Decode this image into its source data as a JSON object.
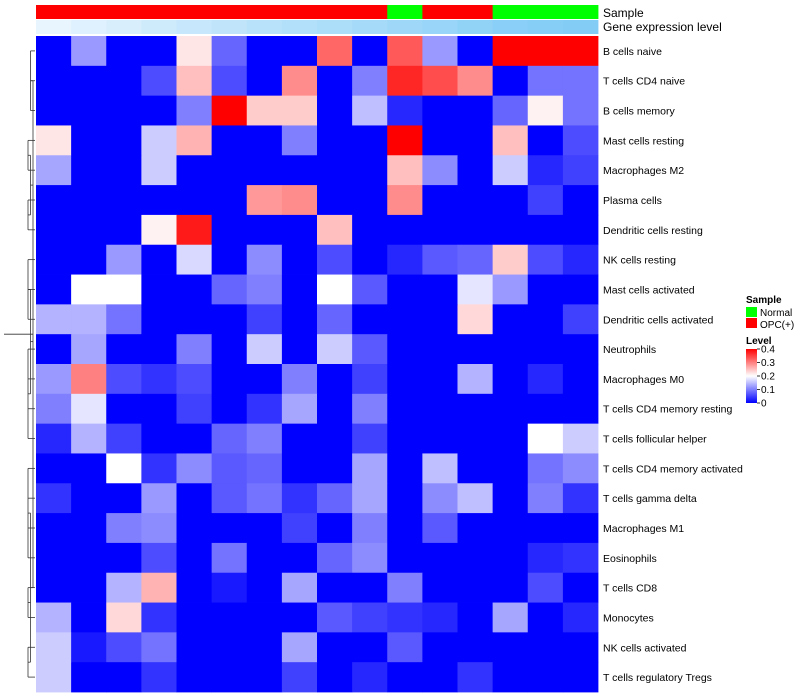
{
  "chart_data": {
    "type": "heatmap",
    "colorscale": {
      "low": "#0000FF",
      "mid": "#FFFFFF",
      "high": "#FF0000",
      "mid_value": 0.2,
      "range": [
        0,
        0.4
      ]
    },
    "annotation_rows": [
      {
        "name": "Sample",
        "values": [
          "OPC(+)",
          "OPC(+)",
          "OPC(+)",
          "OPC(+)",
          "OPC(+)",
          "OPC(+)",
          "OPC(+)",
          "OPC(+)",
          "OPC(+)",
          "OPC(+)",
          "Normal",
          "OPC(+)",
          "OPC(+)",
          "Normal",
          "Normal",
          "Normal"
        ]
      },
      {
        "name": "Gene expression level",
        "values": [
          0.06,
          0.14,
          0.2,
          0.28,
          0.34,
          0.4,
          0.47,
          0.52,
          0.57,
          0.62,
          0.68,
          0.73,
          0.79,
          0.85,
          0.88,
          0.92
        ]
      }
    ],
    "rows": [
      "B cells naive",
      "T cells CD4 naive",
      "B cells memory",
      "Mast cells resting",
      "Macrophages M2",
      "Plasma cells",
      "Dendritic cells resting",
      "NK cells resting",
      "Mast cells activated",
      "Dendritic cells activated",
      "Neutrophils",
      "Macrophages M0",
      "T cells CD4 memory resting",
      "T cells follicular helper",
      "T cells CD4 memory activated",
      "T cells gamma delta",
      "Macrophages M1",
      "Eosinophils",
      "T cells CD8",
      "Monocytes",
      "NK cells activated",
      "T cells regulatory  Tregs"
    ],
    "values": [
      [
        0,
        0.12,
        0,
        0,
        0.22,
        0.08,
        0,
        0,
        0.32,
        0,
        0.33,
        0.12,
        0,
        0.4,
        0.4,
        0.4
      ],
      [
        0,
        0,
        0,
        0.06,
        0.25,
        0.06,
        0,
        0.29,
        0,
        0.1,
        0.37,
        0.34,
        0.29,
        0,
        0.09,
        0.09
      ],
      [
        0,
        0,
        0,
        0,
        0.1,
        0.4,
        0.24,
        0.24,
        0,
        0.15,
        0.03,
        0,
        0,
        0.08,
        0.21,
        0.09
      ],
      [
        0.22,
        0,
        0,
        0.16,
        0.26,
        0,
        0,
        0.1,
        0,
        0,
        0.4,
        0,
        0,
        0.25,
        0,
        0.06
      ],
      [
        0.13,
        0,
        0,
        0.16,
        0,
        0,
        0,
        0,
        0,
        0,
        0.25,
        0.11,
        0,
        0.16,
        0.03,
        0.05
      ],
      [
        0,
        0,
        0,
        0,
        0,
        0,
        0.28,
        0.29,
        0,
        0,
        0.29,
        0,
        0,
        0,
        0.05,
        0
      ],
      [
        0,
        0,
        0,
        0.21,
        0.38,
        0,
        0,
        0,
        0.25,
        0,
        0,
        0,
        0,
        0,
        0,
        0
      ],
      [
        0,
        0,
        0.12,
        0,
        0.17,
        0,
        0.11,
        0,
        0.06,
        0,
        0.03,
        0.07,
        0.08,
        0.24,
        0.06,
        0.03
      ],
      [
        0,
        0.2,
        0.2,
        0,
        0,
        0.08,
        0.1,
        0,
        0.2,
        0.07,
        0,
        0,
        0.18,
        0.12,
        0,
        0
      ],
      [
        0.14,
        0.14,
        0.09,
        0,
        0,
        0,
        0.05,
        0,
        0.08,
        0,
        0,
        0,
        0.23,
        0,
        0,
        0.05
      ],
      [
        0,
        0.13,
        0,
        0,
        0.1,
        0,
        0.16,
        0,
        0.16,
        0.07,
        0,
        0,
        0,
        0,
        0,
        0
      ],
      [
        0.12,
        0.3,
        0.06,
        0.04,
        0.06,
        0,
        0,
        0.1,
        0,
        0.05,
        0,
        0,
        0.14,
        0,
        0.03,
        0
      ],
      [
        0.1,
        0.18,
        0,
        0,
        0.05,
        0,
        0.04,
        0.13,
        0,
        0.1,
        0,
        0,
        0,
        0,
        0,
        0
      ],
      [
        0.03,
        0.14,
        0.05,
        0,
        0,
        0.08,
        0.1,
        0,
        0,
        0.05,
        0,
        0,
        0,
        0,
        0.2,
        0.16
      ],
      [
        0,
        0,
        0.2,
        0.04,
        0.11,
        0.07,
        0.08,
        0,
        0,
        0.13,
        0,
        0.15,
        0,
        0,
        0.09,
        0.11
      ],
      [
        0.04,
        0,
        0,
        0.12,
        0,
        0.07,
        0.09,
        0.04,
        0.08,
        0.13,
        0,
        0.11,
        0.15,
        0,
        0.1,
        0.04
      ],
      [
        0,
        0,
        0.1,
        0.11,
        0,
        0,
        0,
        0.05,
        0,
        0.1,
        0,
        0.07,
        0,
        0,
        0,
        0
      ],
      [
        0,
        0,
        0,
        0.06,
        0,
        0.09,
        0,
        0,
        0.08,
        0.11,
        0,
        0,
        0,
        0,
        0.03,
        0.04
      ],
      [
        0,
        0,
        0.14,
        0.26,
        0,
        0.02,
        0,
        0.13,
        0,
        0,
        0.1,
        0,
        0,
        0,
        0.06,
        0
      ],
      [
        0.14,
        0,
        0.23,
        0.04,
        0,
        0,
        0,
        0,
        0.07,
        0.05,
        0.04,
        0.03,
        0,
        0.13,
        0,
        0.03
      ],
      [
        0.16,
        0.02,
        0.06,
        0.09,
        0,
        0,
        0,
        0.13,
        0,
        0,
        0.07,
        0,
        0,
        0,
        0,
        0
      ],
      [
        0.16,
        0,
        0,
        0.04,
        0,
        0,
        0,
        0.05,
        0,
        0.03,
        0,
        0,
        0.04,
        0,
        0,
        0
      ]
    ],
    "legends": {
      "sample": {
        "title": "Sample",
        "items": [
          {
            "label": "Normal",
            "color": "#00FF00"
          },
          {
            "label": "OPC(+)",
            "color": "#FF0000"
          }
        ]
      },
      "level": {
        "title": "Level",
        "ticks": [
          0,
          0.1,
          0.2,
          0.3,
          0.4
        ],
        "tick_labels": [
          "0",
          "0.1",
          "0.2",
          "0.3",
          "0.4"
        ]
      }
    },
    "dendrogram": {
      "side": "left",
      "leaves": 22
    }
  }
}
